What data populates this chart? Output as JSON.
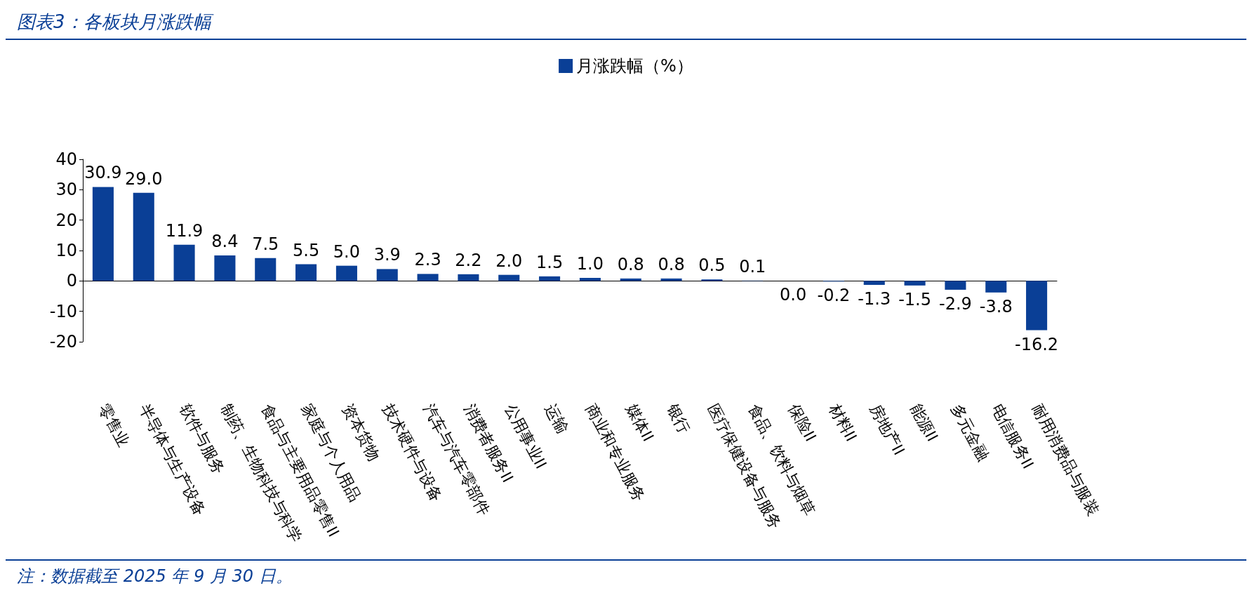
{
  "chart_data": {
    "type": "bar",
    "title": "图表3：各板块月涨跌幅",
    "categories": [
      "零售业",
      "半导体与生产设备",
      "软件与服务",
      "制药、生物科技与科学",
      "食品与主要用品零售II",
      "家庭与个人用品",
      "资本货物",
      "技术硬件与设备",
      "汽车与汽车零部件",
      "消费者服务II",
      "公用事业II",
      "运输",
      "商业和专业服务",
      "媒体II",
      "银行",
      "医疗保健设备与服务",
      "食品、饮料与烟草",
      "保险II",
      "材料II",
      "房地产II",
      "能源II",
      "多元金融",
      "电信服务II",
      "耐用消费品与服装"
    ],
    "series": [
      {
        "name": "月涨跌幅（%）",
        "color": "#0a3f96",
        "values": [
          30.9,
          29.0,
          11.9,
          8.4,
          7.5,
          5.5,
          5.0,
          3.9,
          2.3,
          2.2,
          2.0,
          1.5,
          1.0,
          0.8,
          0.8,
          0.5,
          0.1,
          0.0,
          -0.2,
          -1.3,
          -1.5,
          -2.9,
          -3.8,
          -16.2
        ],
        "value_labels": [
          "30.9",
          "29.0",
          "11.9",
          "8.4",
          "7.5",
          "5.5",
          "5.0",
          "3.9",
          "2.3",
          "2.2",
          "2.0",
          "1.5",
          "1.0",
          "0.8",
          "0.8",
          "0.5",
          "0.1",
          "0.0",
          "-0.2",
          "-1.3",
          "-1.5",
          "-2.9",
          "-3.8",
          "-16.2"
        ]
      }
    ],
    "ylim": [
      -20,
      40
    ],
    "yticks": [
      -20,
      -10,
      0,
      10,
      20,
      30,
      40
    ],
    "legend": "top",
    "annotations": [
      "注：数据截至 2025 年 9 月 30 日。"
    ]
  }
}
